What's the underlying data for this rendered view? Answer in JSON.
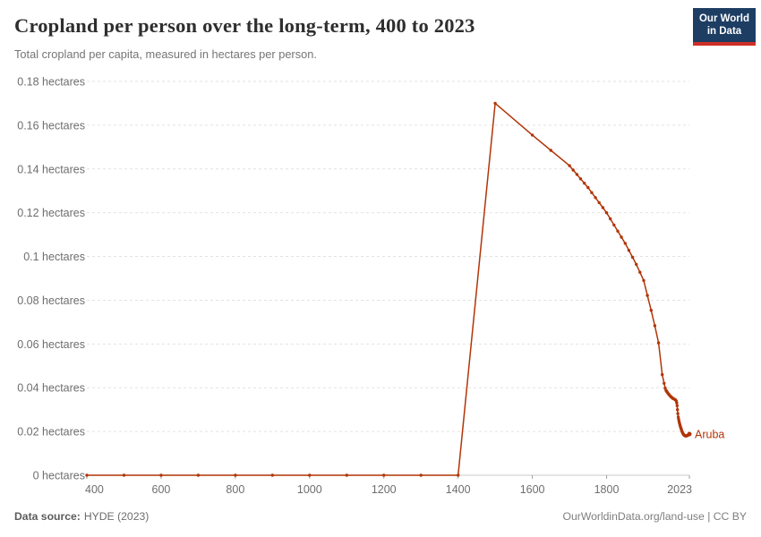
{
  "header": {
    "title": "Cropland per person over the long-term, 400 to 2023",
    "subtitle": "Total cropland per capita, measured in hectares per person.",
    "logo": {
      "line1": "Our World",
      "line2": "in Data"
    }
  },
  "footer": {
    "source_label": "Data source:",
    "source_value": "HYDE (2023)",
    "credit": "OurWorldinData.org/land-use | CC BY"
  },
  "colors": {
    "line": "#b13507",
    "gridline": "#e2e2e2",
    "axis_line": "#c8c8c8",
    "tick_mark": "#a0a0a0",
    "logo_bg": "#1d3d63",
    "logo_stripe": "#cf2f27"
  },
  "chart_data": {
    "type": "line",
    "title": "Cropland per person over the long-term, 400 to 2023",
    "subtitle": "Total cropland per capita, measured in hectares per person.",
    "xlabel": "",
    "ylabel": "hectares per person",
    "y_unit": "hectares",
    "xlim": [
      400,
      2023
    ],
    "ylim": [
      0,
      0.18
    ],
    "x_ticks": [
      400,
      600,
      800,
      1000,
      1200,
      1400,
      1600,
      1800,
      2023
    ],
    "y_ticks": [
      0,
      0.02,
      0.04,
      0.06,
      0.08,
      0.1,
      0.12,
      0.14,
      0.16,
      0.18
    ],
    "grid": "horizontal-dashed",
    "legend": "end-of-line-label",
    "series": [
      {
        "name": "Aruba",
        "color": "#b13507",
        "points": [
          [
            400,
            0
          ],
          [
            500,
            0
          ],
          [
            600,
            0
          ],
          [
            700,
            0
          ],
          [
            800,
            0
          ],
          [
            900,
            0
          ],
          [
            1000,
            0
          ],
          [
            1100,
            0
          ],
          [
            1200,
            0
          ],
          [
            1300,
            0
          ],
          [
            1400,
            0
          ],
          [
            1500,
            0.17
          ],
          [
            1600,
            0.1555
          ],
          [
            1650,
            0.1485
          ],
          [
            1700,
            0.1415
          ],
          [
            1710,
            0.1395
          ],
          [
            1720,
            0.1375
          ],
          [
            1730,
            0.1355
          ],
          [
            1740,
            0.1335
          ],
          [
            1750,
            0.1315
          ],
          [
            1760,
            0.1292
          ],
          [
            1770,
            0.1269
          ],
          [
            1780,
            0.1246
          ],
          [
            1790,
            0.1223
          ],
          [
            1800,
            0.12
          ],
          [
            1810,
            0.1172
          ],
          [
            1820,
            0.1144
          ],
          [
            1830,
            0.1116
          ],
          [
            1840,
            0.1088
          ],
          [
            1850,
            0.106
          ],
          [
            1860,
            0.1028
          ],
          [
            1870,
            0.0996
          ],
          [
            1880,
            0.0964
          ],
          [
            1890,
            0.0928
          ],
          [
            1900,
            0.089
          ],
          [
            1910,
            0.0822
          ],
          [
            1920,
            0.0754
          ],
          [
            1930,
            0.0683
          ],
          [
            1940,
            0.0605
          ],
          [
            1950,
            0.046
          ],
          [
            1955,
            0.042
          ],
          [
            1958,
            0.0398
          ],
          [
            1960,
            0.0388
          ],
          [
            1962,
            0.0383
          ],
          [
            1964,
            0.0378
          ],
          [
            1966,
            0.0373
          ],
          [
            1968,
            0.0369
          ],
          [
            1970,
            0.0365
          ],
          [
            1972,
            0.0361
          ],
          [
            1974,
            0.0358
          ],
          [
            1976,
            0.0355
          ],
          [
            1978,
            0.0352
          ],
          [
            1980,
            0.035
          ],
          [
            1982,
            0.0348
          ],
          [
            1984,
            0.0346
          ],
          [
            1986,
            0.0344
          ],
          [
            1988,
            0.0338
          ],
          [
            1989,
            0.033
          ],
          [
            1990,
            0.0318
          ],
          [
            1991,
            0.03
          ],
          [
            1992,
            0.0282
          ],
          [
            1993,
            0.0266
          ],
          [
            1994,
            0.0256
          ],
          [
            1995,
            0.0248
          ],
          [
            1996,
            0.024
          ],
          [
            1997,
            0.0234
          ],
          [
            1998,
            0.0228
          ],
          [
            1999,
            0.0222
          ],
          [
            2000,
            0.0216
          ],
          [
            2001,
            0.0211
          ],
          [
            2002,
            0.0206
          ],
          [
            2003,
            0.0201
          ],
          [
            2004,
            0.0197
          ],
          [
            2005,
            0.0193
          ],
          [
            2006,
            0.019
          ],
          [
            2007,
            0.0187
          ],
          [
            2008,
            0.0185
          ],
          [
            2009,
            0.0183
          ],
          [
            2010,
            0.0182
          ],
          [
            2011,
            0.0181
          ],
          [
            2012,
            0.018
          ],
          [
            2013,
            0.018
          ],
          [
            2014,
            0.0179
          ],
          [
            2015,
            0.018
          ],
          [
            2016,
            0.0181
          ],
          [
            2017,
            0.0181
          ],
          [
            2018,
            0.0182
          ],
          [
            2019,
            0.0183
          ],
          [
            2020,
            0.0184
          ],
          [
            2021,
            0.0185
          ],
          [
            2022,
            0.0186
          ],
          [
            2023,
            0.0188
          ]
        ]
      }
    ]
  }
}
